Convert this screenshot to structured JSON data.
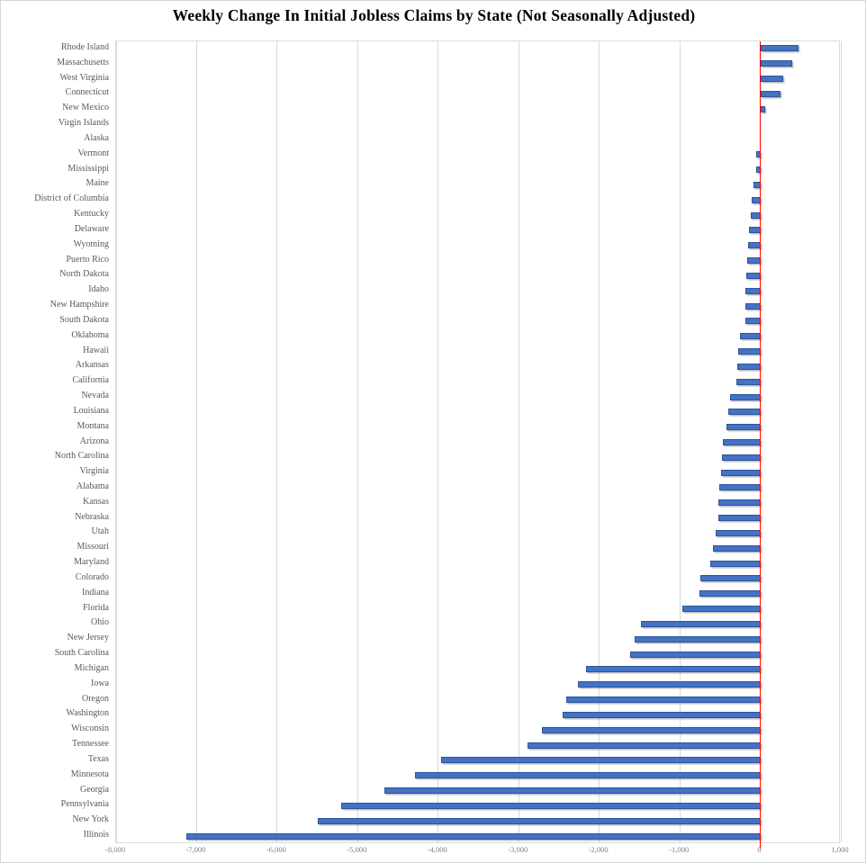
{
  "title": "Weekly Change In Initial Jobless Claims by State (Not Seasonally Adjusted)",
  "colors": {
    "bar_fill": "#4472C4",
    "bar_border": "#2E5597",
    "zero_line": "#FF0000",
    "gridline": "#D9D9D9",
    "label_text": "#595959",
    "tick_text": "#7F7F7F",
    "title_text": "#000000"
  },
  "chart_data": {
    "type": "bar",
    "orientation": "horizontal",
    "title": "Weekly Change In Initial Jobless Claims by State (Not Seasonally Adjusted)",
    "xlabel": "",
    "ylabel": "",
    "xlim": [
      -8000,
      1000
    ],
    "grid": true,
    "legend": "none",
    "zero_line": true,
    "x_tick_labels": [
      "-8,000",
      "-7,000",
      "-6,000",
      "-5,000",
      "-4,000",
      "-3,000",
      "-2,000",
      "-1,000",
      "0",
      "1,000"
    ],
    "x_tick_values": [
      -8000,
      -7000,
      -6000,
      -5000,
      -4000,
      -3000,
      -2000,
      -1000,
      0,
      1000
    ],
    "categories": [
      "Rhode Island",
      "Massachusetts",
      "West Virginia",
      "Connecticut",
      "New Mexico",
      "Virgin Islands",
      "Alaska",
      "Vermont",
      "Mississippi",
      "Maine",
      "District of Columbia",
      "Kentucky",
      "Delaware",
      "Wyoming",
      "Puerto Rico",
      "North Dakota",
      "Idaho",
      "New Hampshire",
      "South Dakota",
      "Oklahoma",
      "Hawaii",
      "Arkansas",
      "California",
      "Nevada",
      "Louisiana",
      "Montana",
      "Arizona",
      "North Carolina",
      "Virginia",
      "Alabama",
      "Kansas",
      "Nebraska",
      "Utah",
      "Missouri",
      "Maryland",
      "Colorado",
      "Indiana",
      "Florida",
      "Ohio",
      "New Jersey",
      "South Carolina",
      "Michigan",
      "Iowa",
      "Oregon",
      "Washington",
      "Wisconsin",
      "Tennessee",
      "Texas",
      "Minnesota",
      "Georgia",
      "Pennsylvania",
      "New York",
      "Illinois"
    ],
    "values": [
      475,
      400,
      285,
      255,
      60,
      0,
      0,
      -50,
      -55,
      -90,
      -110,
      -115,
      -140,
      -155,
      -160,
      -175,
      -180,
      -185,
      -190,
      -250,
      -270,
      -285,
      -300,
      -370,
      -400,
      -425,
      -460,
      -475,
      -490,
      -505,
      -515,
      -520,
      -550,
      -590,
      -620,
      -740,
      -755,
      -970,
      -1480,
      -1560,
      -1620,
      -2160,
      -2260,
      -2410,
      -2450,
      -2710,
      -2890,
      -3960,
      -4290,
      -4670,
      -5200,
      -5500,
      -7130
    ]
  }
}
